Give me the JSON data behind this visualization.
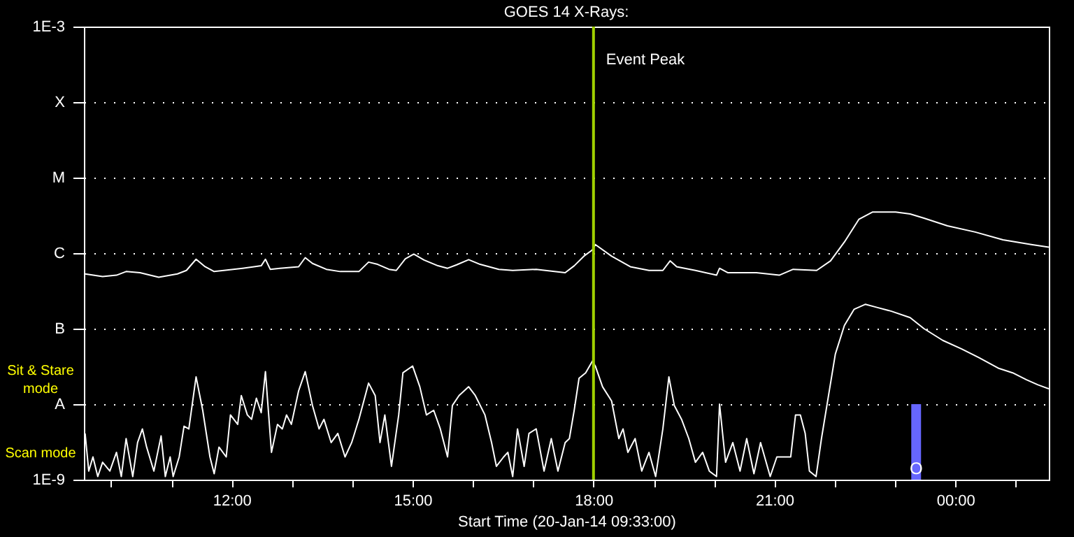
{
  "chart_data": {
    "type": "line",
    "title": "GOES 14 X-Rays:",
    "xlabel": "Start Time (20-Jan-14 09:33:00)",
    "annotations": [
      "Sit & Stare mode",
      "Scan mode"
    ],
    "log": "y",
    "grid": "y",
    "xlim": [
      9.55,
      25.55
    ],
    "xticks": [
      {
        "value": 10,
        "label": null
      },
      {
        "value": 11,
        "label": null
      },
      {
        "value": 12,
        "label": "12:00"
      },
      {
        "value": 13,
        "label": null
      },
      {
        "value": 14,
        "label": null
      },
      {
        "value": 15,
        "label": "15:00"
      },
      {
        "value": 16,
        "label": null
      },
      {
        "value": 17,
        "label": null
      },
      {
        "value": 18,
        "label": "18:00"
      },
      {
        "value": 19,
        "label": null
      },
      {
        "value": 20,
        "label": null
      },
      {
        "value": 21,
        "label": "21:00"
      },
      {
        "value": 22,
        "label": null
      },
      {
        "value": 23,
        "label": null
      },
      {
        "value": 24,
        "label": "00:00"
      },
      {
        "value": 25,
        "label": null
      }
    ],
    "ylim": [
      1e-09,
      0.001
    ],
    "yticks": [
      {
        "value": 1e-09,
        "label": "1E-9"
      },
      {
        "value": 1e-08,
        "label": "A"
      },
      {
        "value": 1e-07,
        "label": "B"
      },
      {
        "value": 1e-06,
        "label": "C"
      },
      {
        "value": 1e-05,
        "label": "M"
      },
      {
        "value": 0.0001,
        "label": "X"
      },
      {
        "value": 0.001,
        "label": "1E-3"
      }
    ],
    "ref_lines": [
      {
        "axis": "x",
        "value": 18.0,
        "label": "Event Peak",
        "color": "#a0d000"
      }
    ],
    "series": [
      {
        "color": "#ffffff",
        "x": [
          9.57,
          9.86,
          10.09,
          10.25,
          10.48,
          10.79,
          11.1,
          11.25,
          11.41,
          11.56,
          11.71,
          11.87,
          12.18,
          12.37,
          12.49,
          12.56,
          12.64,
          12.8,
          13.11,
          13.22,
          13.34,
          13.57,
          13.8,
          14.11,
          14.27,
          14.42,
          14.61,
          14.73,
          14.88,
          15.02,
          15.19,
          15.42,
          15.58,
          15.73,
          15.93,
          16.12,
          16.43,
          16.66,
          17.05,
          17.53,
          17.68,
          17.84,
          17.98,
          18.03,
          18.3,
          18.61,
          18.92,
          19.15,
          19.27,
          19.38,
          19.69,
          20.04,
          20.09,
          20.23,
          20.7,
          21.08,
          21.31,
          21.7,
          21.93,
          22.16,
          22.4,
          22.63,
          23.01,
          23.25,
          23.48,
          23.87,
          24.33,
          24.79,
          25.26,
          25.55
        ],
        "values": [
          5.3e-07,
          4.9e-07,
          5.1e-07,
          5.7e-07,
          5.5e-07,
          4.8e-07,
          5.3e-07,
          5.9e-07,
          8.3e-07,
          6.6e-07,
          5.7e-07,
          5.9e-07,
          6.3e-07,
          6.6e-07,
          6.8e-07,
          8.3e-07,
          6.1e-07,
          6.3e-07,
          6.6e-07,
          8.7e-07,
          7.3e-07,
          6.1e-07,
          5.7e-07,
          5.7e-07,
          7.6e-07,
          7.1e-07,
          6.1e-07,
          5.9e-07,
          8.4e-07,
          9.7e-07,
          8.1e-07,
          6.8e-07,
          6.3e-07,
          7e-07,
          8.2e-07,
          7.1e-07,
          6.1e-07,
          5.9e-07,
          6.1e-07,
          5.5e-07,
          6.8e-07,
          9.1e-07,
          1.1e-06,
          1.3e-06,
          9.1e-07,
          6.6e-07,
          5.9e-07,
          5.9e-07,
          7.9e-07,
          6.6e-07,
          5.9e-07,
          5.1e-07,
          6.3e-07,
          5.5e-07,
          5.5e-07,
          5.1e-07,
          6.1e-07,
          5.9e-07,
          7.9e-07,
          1.4e-06,
          2.8e-06,
          3.5e-06,
          3.5e-06,
          3.3e-06,
          2.9e-06,
          2.3e-06,
          1.9e-06,
          1.5e-06,
          1.3e-06,
          1.2e-06
        ]
      },
      {
        "color": "#ffffff",
        "x": [
          9.57,
          9.63,
          9.7,
          9.78,
          9.86,
          9.98,
          10.09,
          10.17,
          10.25,
          10.36,
          10.44,
          10.52,
          10.59,
          10.71,
          10.83,
          10.9,
          10.98,
          11.03,
          11.13,
          11.21,
          11.29,
          11.41,
          11.52,
          11.64,
          11.71,
          11.79,
          11.91,
          11.98,
          12.1,
          12.16,
          12.26,
          12.33,
          12.41,
          12.49,
          12.56,
          12.66,
          12.76,
          12.84,
          12.91,
          12.99,
          13.11,
          13.22,
          13.34,
          13.45,
          13.53,
          13.65,
          13.76,
          13.88,
          13.99,
          14.11,
          14.27,
          14.38,
          14.46,
          14.54,
          14.65,
          14.77,
          14.84,
          15.0,
          15.12,
          15.23,
          15.35,
          15.46,
          15.58,
          15.66,
          15.77,
          15.93,
          16.04,
          16.2,
          16.31,
          16.39,
          16.51,
          16.58,
          16.66,
          16.74,
          16.85,
          16.93,
          17.05,
          17.18,
          17.3,
          17.41,
          17.53,
          17.6,
          17.68,
          17.76,
          17.87,
          17.98,
          18.03,
          18.15,
          18.3,
          18.42,
          18.49,
          18.57,
          18.69,
          18.8,
          18.92,
          19.03,
          19.15,
          19.25,
          19.34,
          19.46,
          19.58,
          19.69,
          19.81,
          19.92,
          20.04,
          20.09,
          20.19,
          20.31,
          20.43,
          20.54,
          20.66,
          20.77,
          20.93,
          21.04,
          21.16,
          21.27,
          21.35,
          21.43,
          21.51,
          21.58,
          21.69,
          21.78,
          21.89,
          22.01,
          22.16,
          22.32,
          22.51,
          22.71,
          22.94,
          23.25,
          23.48,
          23.79,
          24.1,
          24.4,
          24.71,
          24.95,
          25.18,
          25.37,
          25.55
        ],
        "values": [
          4.1e-09,
          1.3e-09,
          2e-09,
          1.1e-09,
          1.7e-09,
          1.3e-09,
          2.3e-09,
          1.1e-09,
          3.5e-09,
          1.1e-09,
          3.1e-09,
          4.7e-09,
          2.7e-09,
          1.3e-09,
          3.8e-09,
          1.1e-09,
          2e-09,
          1.1e-09,
          2e-09,
          5.1e-09,
          4.7e-09,
          2.3e-08,
          8.3e-09,
          2e-09,
          1.2e-09,
          2.7e-09,
          2e-09,
          7.2e-09,
          5.4e-09,
          1.3e-08,
          7.2e-09,
          6.3e-09,
          1.2e-08,
          7.7e-09,
          2.7e-08,
          2.3e-09,
          5.4e-09,
          4.7e-09,
          7.2e-09,
          5.4e-09,
          1.5e-08,
          2.7e-08,
          9.6e-09,
          4.7e-09,
          6.3e-09,
          3.1e-09,
          4.1e-09,
          2e-09,
          3.1e-09,
          6.3e-09,
          1.9e-08,
          1.3e-08,
          3.1e-09,
          7.2e-09,
          1.5e-09,
          7.2e-09,
          2.6e-08,
          3.2e-08,
          1.7e-08,
          7.2e-09,
          8.3e-09,
          4.7e-09,
          2e-09,
          9.6e-09,
          1.3e-08,
          1.7e-08,
          1.3e-08,
          7.2e-09,
          3.1e-09,
          1.5e-09,
          2e-09,
          2.3e-09,
          1.1e-09,
          4.7e-09,
          1.5e-09,
          4.1e-09,
          4.7e-09,
          1.3e-09,
          3.5e-09,
          1.3e-09,
          3.1e-09,
          3.5e-09,
          8.3e-09,
          2.2e-08,
          2.6e-08,
          3.7e-08,
          3.2e-08,
          1.7e-08,
          1.1e-08,
          3.5e-09,
          4.7e-09,
          2.3e-09,
          3.5e-09,
          1.3e-09,
          2.3e-09,
          1.1e-09,
          4.7e-09,
          2.3e-08,
          9.6e-09,
          6.3e-09,
          3.5e-09,
          1.7e-09,
          2.3e-09,
          1.3e-09,
          1.1e-09,
          1e-08,
          1.7e-09,
          3.1e-09,
          1.3e-09,
          3.5e-09,
          1.2e-09,
          3.1e-09,
          1.1e-09,
          2e-09,
          2e-09,
          2e-09,
          7.2e-09,
          7.2e-09,
          4.1e-09,
          1.3e-09,
          1.1e-09,
          3.5e-09,
          1.2e-08,
          4.6e-08,
          1.1e-07,
          1.8e-07,
          2.1e-07,
          1.9e-07,
          1.7e-07,
          1.4e-07,
          1e-07,
          7e-08,
          5.4e-08,
          4.1e-08,
          3e-08,
          2.6e-08,
          2.1e-08,
          1.8e-08,
          1.6e-08
        ]
      },
      {
        "type": "bar",
        "color": "#6666ff",
        "x": [
          23.35
        ],
        "values": [
          1e-08
        ],
        "value_labels": [
          "O"
        ]
      }
    ]
  }
}
